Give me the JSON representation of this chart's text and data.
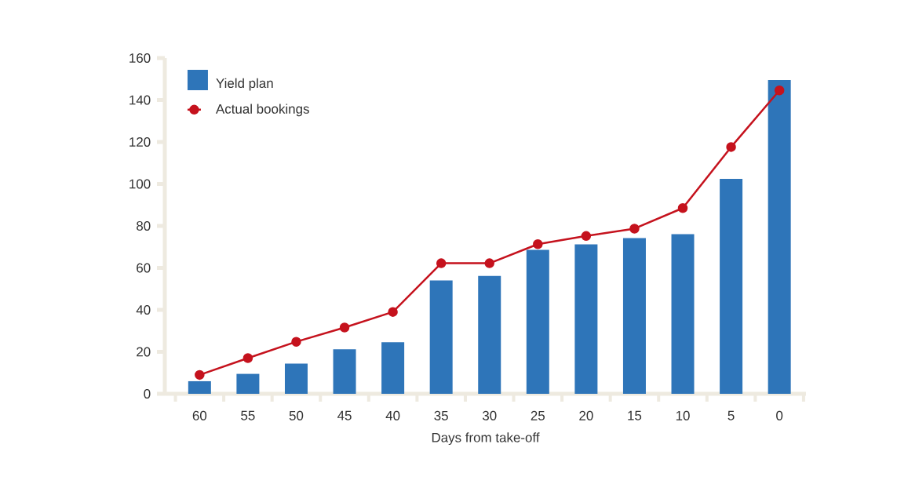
{
  "chart_data": {
    "type": "bar",
    "xlabel": "Days from take-off",
    "categories": [
      "60",
      "55",
      "50",
      "45",
      "40",
      "35",
      "30",
      "25",
      "20",
      "15",
      "10",
      "5",
      "0"
    ],
    "series": [
      {
        "name": "Yield plan",
        "color": "#2e75b9",
        "values": [
          6,
          9.5,
          14.4,
          21.2,
          24.6,
          54,
          56.2,
          68.6,
          71.2,
          74.2,
          76.1,
          102.4,
          149.5
        ]
      },
      {
        "name": "Actual bookings",
        "type": "line",
        "color": "#c5121d",
        "marker": "circle",
        "values": [
          9,
          17,
          24.8,
          31.6,
          39,
          62.2,
          62.2,
          71.3,
          75.2,
          78.7,
          88.5,
          117.6,
          144.6
        ]
      }
    ],
    "ylim": [
      0,
      160
    ],
    "yticks": [
      0,
      20,
      40,
      60,
      80,
      100,
      120,
      140,
      160
    ],
    "legend": "top left"
  }
}
